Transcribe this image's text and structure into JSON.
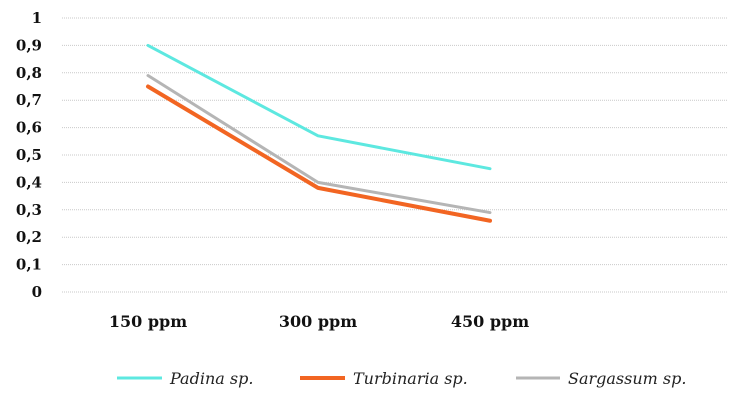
{
  "chart_data": {
    "type": "line",
    "categories": [
      "150 ppm",
      "300 ppm",
      "450 ppm"
    ],
    "ylim": [
      0,
      1
    ],
    "yticks": [
      "0",
      "0,1",
      "0,2",
      "0,3",
      "0,4",
      "0,5",
      "0,6",
      "0,7",
      "0,8",
      "0,9",
      "1"
    ],
    "grid": true,
    "legend_position": "bottom",
    "series": [
      {
        "name": "Padina sp.",
        "values": [
          0.9,
          0.57,
          0.45
        ],
        "color": "#5de8e0"
      },
      {
        "name": "Turbinaria sp.",
        "values": [
          0.75,
          0.38,
          0.26
        ],
        "color": "#f26522"
      },
      {
        "name": "Sargassum sp.",
        "values": [
          0.79,
          0.4,
          0.29
        ],
        "color": "#b5b5b5"
      }
    ]
  }
}
